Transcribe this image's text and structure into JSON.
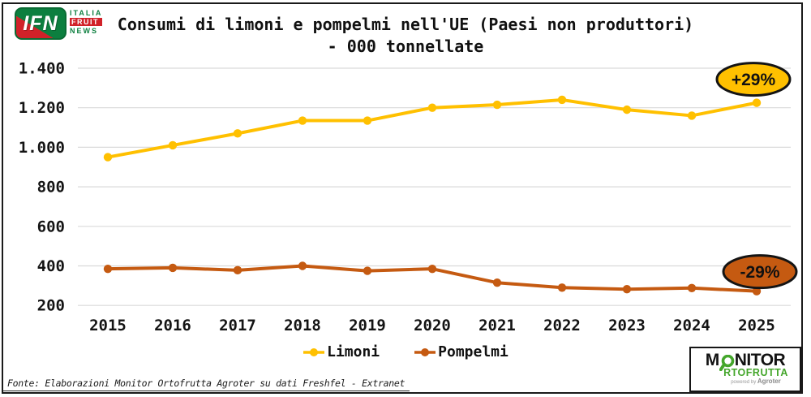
{
  "header": {
    "title_line1": "Consumi di limoni e pompelmi nell'UE (Paesi non produttori)",
    "title_line2": "- 000 tonnellate"
  },
  "branding": {
    "ifn": {
      "abbr": "IFN",
      "italia": "ITALIA",
      "fruit": "FRUIT",
      "news": "NEWS"
    },
    "monitor": {
      "m": "M",
      "nitor": "NITOR",
      "rtofrutta": "RTOFRUTTA",
      "powered": "powered by",
      "agroter": "Agroter"
    }
  },
  "chart_data": {
    "type": "line",
    "title": "Consumi di limoni e pompelmi nell'UE (Paesi non produttori) - 000 tonnellate",
    "categories": [
      "2015",
      "2016",
      "2017",
      "2018",
      "2019",
      "2020",
      "2021",
      "2022",
      "2023",
      "2024",
      "2025"
    ],
    "series": [
      {
        "name": "Limoni",
        "color": "#FFC000",
        "values": [
          950,
          1010,
          1070,
          1135,
          1135,
          1200,
          1215,
          1240,
          1190,
          1160,
          1225
        ]
      },
      {
        "name": "Pompelmi",
        "color": "#C55A11",
        "values": [
          385,
          390,
          378,
          400,
          375,
          385,
          315,
          290,
          282,
          288,
          272
        ]
      }
    ],
    "ylim": [
      200,
      1400
    ],
    "y_ticks": [
      1400,
      1200,
      1000,
      800,
      600,
      400,
      200
    ],
    "y_tick_labels": [
      "1.400",
      "1.200",
      "1.000",
      "800",
      "600",
      "400",
      "200"
    ],
    "grid": "horizontal-only",
    "gridline_color": "#DADADA",
    "legend_position": "bottom",
    "annotations": [
      {
        "text": "+29%",
        "fill": "#FFC000",
        "stroke": "#141414",
        "text_color": "#111111",
        "series": "Limoni"
      },
      {
        "text": "-29%",
        "fill": "#C55A11",
        "stroke": "#141414",
        "text_color": "#111111",
        "series": "Pompelmi"
      }
    ]
  },
  "legend": {
    "items": [
      {
        "label": "Limoni",
        "color": "#FFC000"
      },
      {
        "label": "Pompelmi",
        "color": "#C55A11"
      }
    ]
  },
  "footer": {
    "source": "Fonte: Elaborazioni Monitor Ortofrutta Agroter su dati Freshfel - Extranet"
  }
}
